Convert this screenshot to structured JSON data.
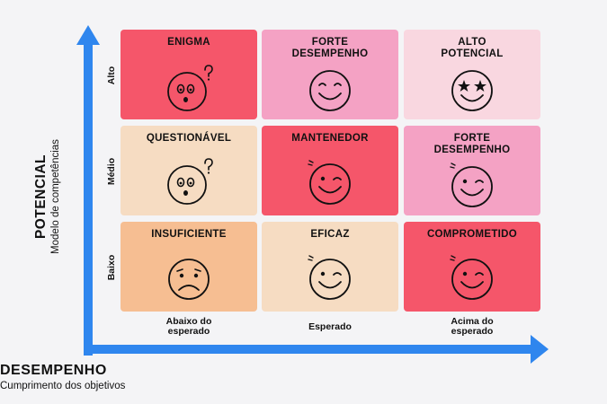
{
  "y_axis": {
    "title": "POTENCIAL",
    "subtitle": "Modelo de competências"
  },
  "x_axis": {
    "title": "DESEMPENHO",
    "subtitle": "Cumprimento dos objetivos"
  },
  "rows": [
    "Alto",
    "Médio",
    "Baixo"
  ],
  "columns": [
    "Abaixo do\nesperado",
    "Esperado",
    "Acima do\nesperado"
  ],
  "colors": {
    "axis_blue": "#2f86ee",
    "red": "#f5566a",
    "pink": "#f4a2c4",
    "light_pink": "#f9d7e0",
    "peach": "#f6dcc2",
    "orange": "#f6be92"
  },
  "cells": [
    {
      "title": "ENIGMA",
      "color": "#f5566a",
      "face": "confused-face-icon"
    },
    {
      "title": "FORTE\nDESEMPENHO",
      "color": "#f4a2c4",
      "face": "smiling-face-icon"
    },
    {
      "title": "ALTO\nPOTENCIAL",
      "color": "#f9d7e0",
      "face": "star-eyes-face-icon"
    },
    {
      "title": "QUESTIONÁVEL",
      "color": "#f6dcc2",
      "face": "confused-face-icon"
    },
    {
      "title": "MANTENEDOR",
      "color": "#f5566a",
      "face": "winking-face-icon"
    },
    {
      "title": "FORTE\nDESEMPENHO",
      "color": "#f4a2c4",
      "face": "winking-face-icon"
    },
    {
      "title": "INSUFICIENTE",
      "color": "#f6be92",
      "face": "sad-face-icon"
    },
    {
      "title": "EFICAZ",
      "color": "#f6dcc2",
      "face": "winking-face-icon"
    },
    {
      "title": "COMPROMETIDO",
      "color": "#f5566a",
      "face": "winking-face-icon"
    }
  ]
}
